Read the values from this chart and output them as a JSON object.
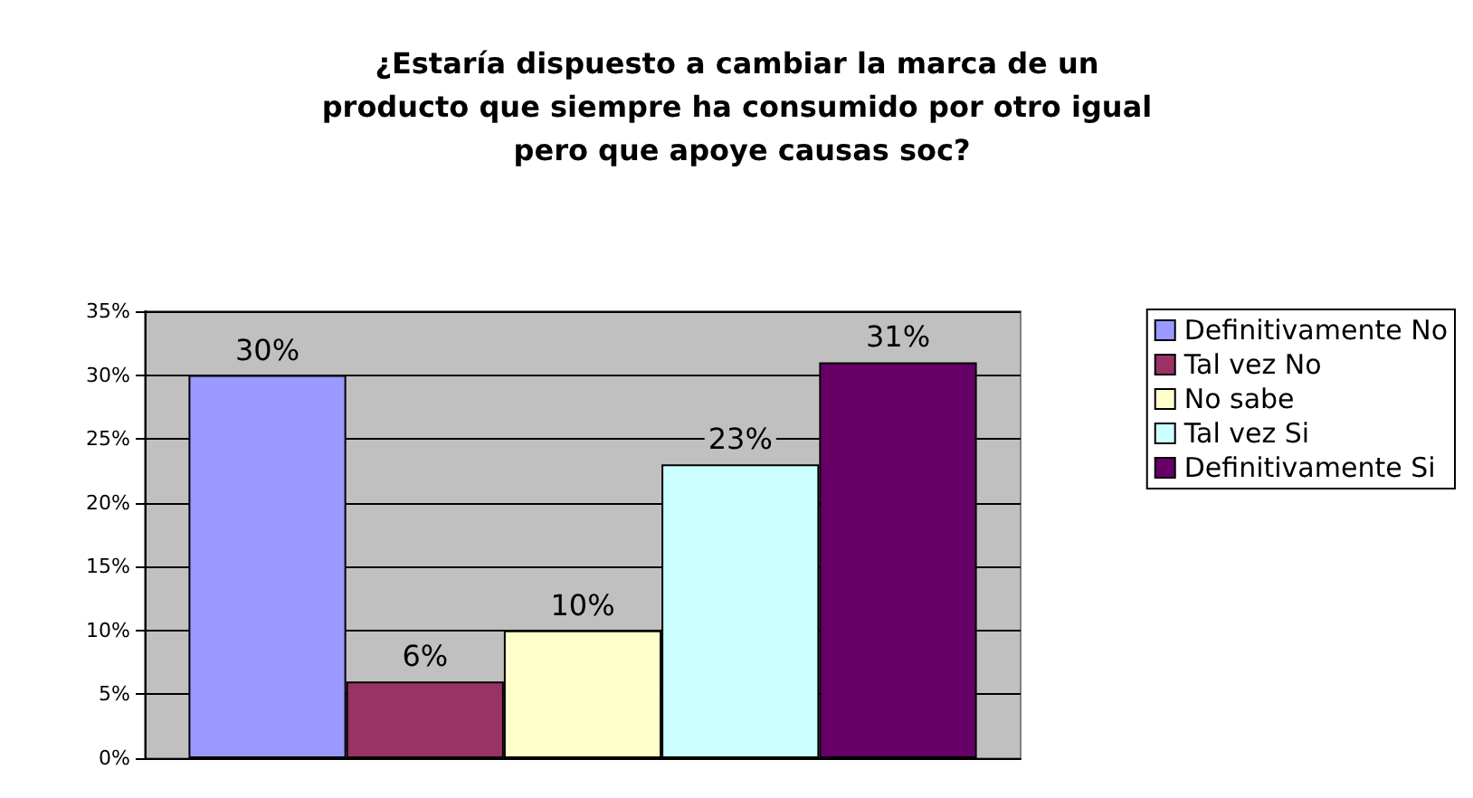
{
  "chart_data": {
    "type": "bar",
    "title": "¿Estaría dispuesto a cambiar la marca de un producto que siempre ha consumido por otro igual pero que apoye causas soc?",
    "categories": [
      null
    ],
    "series": [
      {
        "name": "Definitivamente No",
        "color": "#9999ff",
        "values": [
          30
        ],
        "value_labels": [
          "30%"
        ]
      },
      {
        "name": "Tal vez No",
        "color": "#993366",
        "values": [
          6
        ],
        "value_labels": [
          "6%"
        ]
      },
      {
        "name": "No sabe",
        "color": "#ffffcc",
        "values": [
          10
        ],
        "value_labels": [
          "10%"
        ]
      },
      {
        "name": "Tal vez Si",
        "color": "#ccffff",
        "values": [
          23
        ],
        "value_labels": [
          "23%"
        ]
      },
      {
        "name": "Definitivamente Si",
        "color": "#660066",
        "values": [
          31
        ],
        "value_labels": [
          "31%"
        ]
      }
    ],
    "ylim": [
      0,
      35
    ],
    "yticks": [
      {
        "value": 0,
        "label": "0%"
      },
      {
        "value": 5,
        "label": "5%"
      },
      {
        "value": 10,
        "label": "10%"
      },
      {
        "value": 15,
        "label": "15%"
      },
      {
        "value": 20,
        "label": "20%"
      },
      {
        "value": 25,
        "label": "25%"
      },
      {
        "value": 30,
        "label": "30%"
      },
      {
        "value": 35,
        "label": "35%"
      }
    ],
    "grid": "y",
    "legend": "right"
  }
}
